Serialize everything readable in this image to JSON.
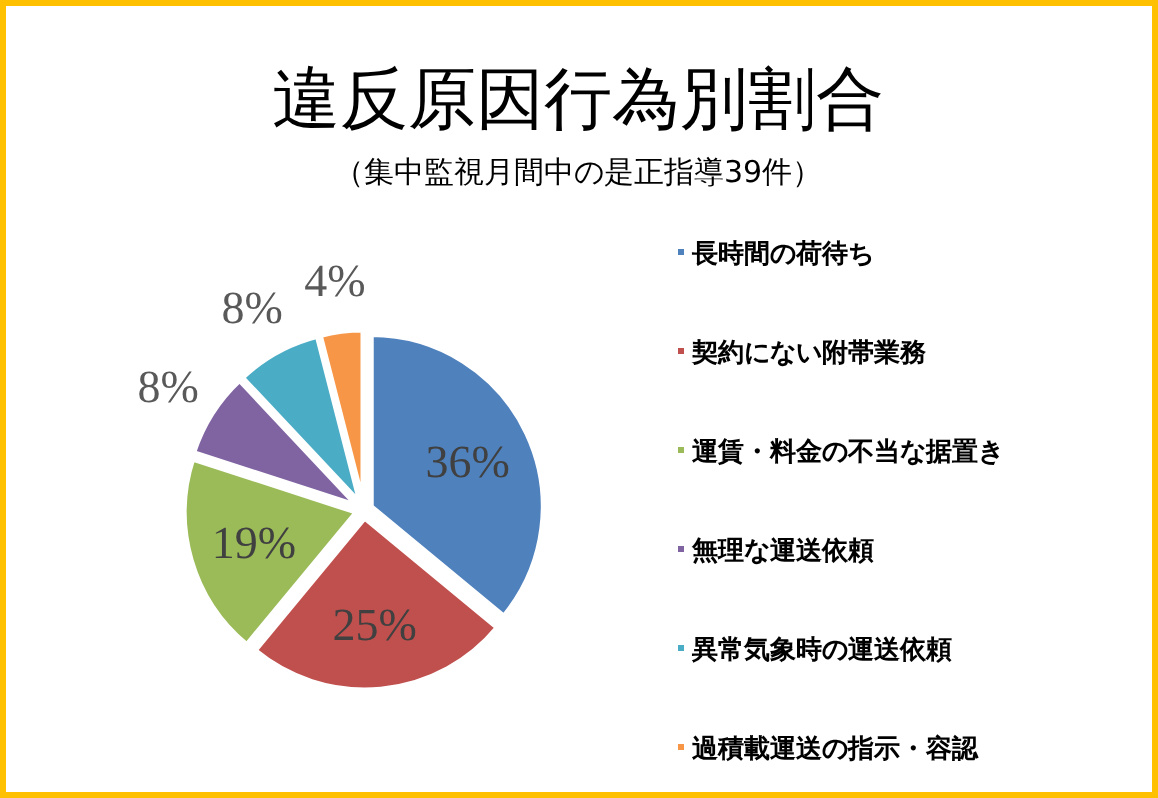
{
  "chart_data": {
    "type": "pie",
    "title": "違反原因行為別割合",
    "subtitle": "（集中監視月間中の是正指導39件）",
    "categories": [
      "長時間の荷待ち",
      "契約にない附帯業務",
      "運賃・料金の不当な据置き",
      "無理な運送依頼",
      "異常気象時の運送依頼",
      "過積載運送の指示・容認"
    ],
    "values": [
      36,
      25,
      19,
      8,
      8,
      4
    ],
    "colors": [
      "#4f81bd",
      "#c0504d",
      "#9bbb59",
      "#8064a2",
      "#4bacc6",
      "#f79646"
    ],
    "value_labels": [
      "36%",
      "25%",
      "19%",
      "8%",
      "8%",
      "4%"
    ],
    "legend": "right"
  }
}
